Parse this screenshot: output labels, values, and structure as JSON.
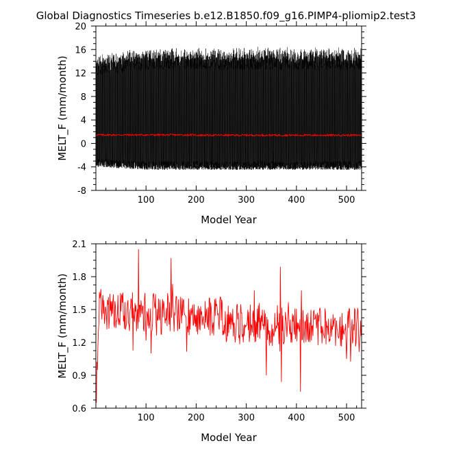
{
  "title": "Global Diagnostics Timeseries b.e12.B1850.f09_g16.PIMP4-pliomip2.test3",
  "colors": {
    "monthly": "#000000",
    "annual_mean": "#ff0000"
  },
  "chart_data": [
    {
      "type": "line",
      "xlabel": "Model Year",
      "ylabel": "MELT_F (mm/month)",
      "xlim": [
        0,
        530
      ],
      "ylim": [
        -8,
        20
      ],
      "xticks": [
        100,
        200,
        300,
        400,
        500
      ],
      "yticks": [
        -8,
        -4,
        0,
        4,
        8,
        12,
        16,
        20
      ],
      "series": [
        {
          "resolution": "monthly",
          "color": "#000000",
          "description_points": [
            {
              "x": 0,
              "ymin": -4.0,
              "ymax": 15.5
            },
            {
              "x": 100,
              "ymin": -4.5,
              "ymax": 16.5
            },
            {
              "x": 200,
              "ymin": -4.5,
              "ymax": 16.5
            },
            {
              "x": 300,
              "ymin": -4.5,
              "ymax": 16.5
            },
            {
              "x": 400,
              "ymin": -4.5,
              "ymax": 16.5
            },
            {
              "x": 530,
              "ymin": -4.5,
              "ymax": 16.5
            }
          ]
        },
        {
          "resolution": "annual",
          "color": "#ff0000",
          "approx_mean": 1.4
        }
      ]
    },
    {
      "type": "line",
      "xlabel": "Model Year",
      "ylabel": "MELT_F (mm/month)",
      "xlim": [
        0,
        530
      ],
      "ylim": [
        0.6,
        2.1
      ],
      "xticks": [
        100,
        200,
        300,
        400,
        500
      ],
      "yticks": [
        "0.6",
        "0.9",
        "1.2",
        "1.5",
        "1.8",
        "2.1"
      ],
      "series": [
        {
          "color": "#ff0000",
          "key_points": [
            {
              "x": 1,
              "y": 0.65
            },
            {
              "x": 5,
              "y": 1.3
            },
            {
              "x": 20,
              "y": 1.5
            },
            {
              "x": 85,
              "y": 2.05
            },
            {
              "x": 110,
              "y": 1.1
            },
            {
              "x": 150,
              "y": 1.97
            },
            {
              "x": 200,
              "y": 1.45
            },
            {
              "x": 250,
              "y": 1.4
            },
            {
              "x": 300,
              "y": 1.35
            },
            {
              "x": 340,
              "y": 0.9
            },
            {
              "x": 368,
              "y": 1.89
            },
            {
              "x": 370,
              "y": 0.84
            },
            {
              "x": 408,
              "y": 0.75
            },
            {
              "x": 450,
              "y": 1.35
            },
            {
              "x": 500,
              "y": 1.05
            },
            {
              "x": 530,
              "y": 1.3
            }
          ]
        }
      ]
    }
  ]
}
